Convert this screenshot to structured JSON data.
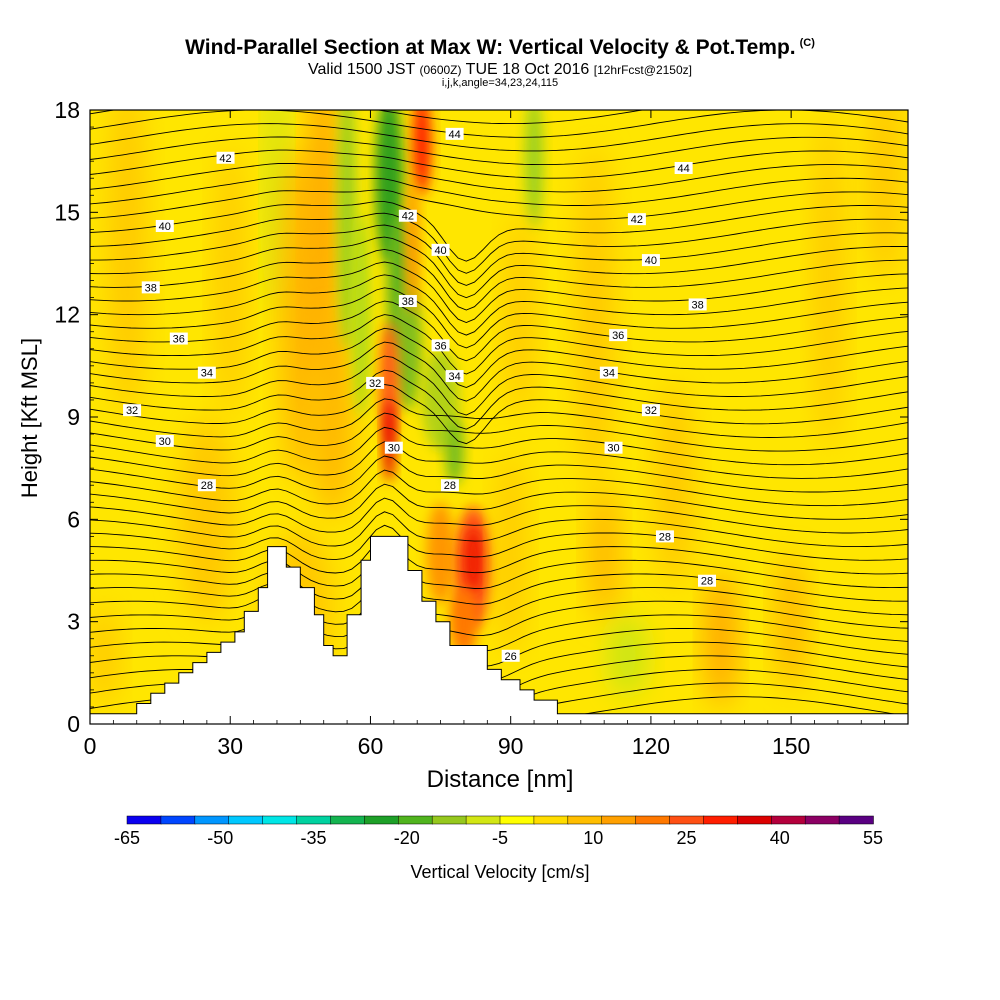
{
  "title": "Wind-Parallel Section at Max W: Vertical Velocity & Pot.Temp.",
  "title_suffix": "(C)",
  "subtitle_main": "Valid 1500 JST",
  "subtitle_utc": "(0600Z)",
  "subtitle_date": "TUE 18 Oct 2016",
  "subtitle_fcst": "[12hrFcst@2150z]",
  "subtitle_line3": "i,j,k,angle=34,23,24,115",
  "colorbar_label": "Vertical Velocity [cm/s]",
  "colorbar_ticks": [
    "-65",
    "-50",
    "-35",
    "-20",
    "-5",
    "10",
    "25",
    "40",
    "55"
  ],
  "colorbar_colors": [
    "#0a00f0",
    "#0046ff",
    "#0096ff",
    "#00c8ff",
    "#00e6e6",
    "#00d2a0",
    "#14b450",
    "#1ea028",
    "#50b41e",
    "#96c81e",
    "#d2e614",
    "#ffff00",
    "#ffdc00",
    "#ffbe00",
    "#ffa000",
    "#ff7800",
    "#ff5014",
    "#ff1e00",
    "#dc0000",
    "#b4003c",
    "#8c0064",
    "#5a0082"
  ],
  "chart_data": {
    "type": "heatmap",
    "xlabel": "Distance [nm]",
    "ylabel": "Height [Kft MSL]",
    "xlim": [
      0,
      175
    ],
    "ylim": [
      0,
      18
    ],
    "x_ticks": [
      "0",
      "30",
      "60",
      "90",
      "120",
      "150"
    ],
    "y_ticks": [
      "0",
      "3",
      "6",
      "9",
      "12",
      "15",
      "18"
    ],
    "terrain": [
      [
        0,
        0.3
      ],
      [
        10,
        0.3
      ],
      [
        10,
        0.6
      ],
      [
        13,
        0.6
      ],
      [
        13,
        0.9
      ],
      [
        16,
        0.9
      ],
      [
        16,
        1.2
      ],
      [
        19,
        1.2
      ],
      [
        19,
        1.5
      ],
      [
        22,
        1.5
      ],
      [
        22,
        1.8
      ],
      [
        25,
        1.8
      ],
      [
        25,
        2.1
      ],
      [
        28,
        2.1
      ],
      [
        28,
        2.4
      ],
      [
        31,
        2.4
      ],
      [
        31,
        2.7
      ],
      [
        33,
        2.7
      ],
      [
        33,
        3.3
      ],
      [
        36,
        3.3
      ],
      [
        36,
        4.0
      ],
      [
        38,
        4.0
      ],
      [
        38,
        5.2
      ],
      [
        42,
        5.2
      ],
      [
        42,
        4.6
      ],
      [
        45,
        4.6
      ],
      [
        45,
        4.0
      ],
      [
        48,
        4.0
      ],
      [
        48,
        3.2
      ],
      [
        50,
        3.2
      ],
      [
        50,
        2.3
      ],
      [
        52,
        2.3
      ],
      [
        52,
        2.0
      ],
      [
        55,
        2.0
      ],
      [
        55,
        3.2
      ],
      [
        58,
        3.2
      ],
      [
        58,
        4.8
      ],
      [
        60,
        4.8
      ],
      [
        60,
        5.5
      ],
      [
        68,
        5.5
      ],
      [
        68,
        4.5
      ],
      [
        71,
        4.5
      ],
      [
        71,
        3.6
      ],
      [
        74,
        3.6
      ],
      [
        74,
        3.0
      ],
      [
        77,
        3.0
      ],
      [
        77,
        2.3
      ],
      [
        85,
        2.3
      ],
      [
        85,
        1.6
      ],
      [
        88,
        1.6
      ],
      [
        88,
        1.3
      ],
      [
        92,
        1.3
      ],
      [
        92,
        1.0
      ],
      [
        95,
        1.0
      ],
      [
        95,
        0.7
      ],
      [
        100,
        0.7
      ],
      [
        100,
        0.3
      ],
      [
        175,
        0.3
      ]
    ],
    "theta_contours": [
      {
        "level": "26",
        "label_x": 90,
        "label_y": 2.0
      },
      {
        "level": "28",
        "label_x": 25,
        "label_y": 7.0
      },
      {
        "level": "28",
        "label_x": 77,
        "label_y": 7.0
      },
      {
        "level": "28",
        "label_x": 123,
        "label_y": 5.5
      },
      {
        "level": "28",
        "label_x": 132,
        "label_y": 4.2
      },
      {
        "level": "30",
        "label_x": 16,
        "label_y": 8.3
      },
      {
        "level": "30",
        "label_x": 65,
        "label_y": 8.1
      },
      {
        "level": "30",
        "label_x": 112,
        "label_y": 8.1
      },
      {
        "level": "32",
        "label_x": 9,
        "label_y": 9.2
      },
      {
        "level": "32",
        "label_x": 61,
        "label_y": 10.0
      },
      {
        "level": "32",
        "label_x": 120,
        "label_y": 9.2
      },
      {
        "level": "34",
        "label_x": 25,
        "label_y": 10.3
      },
      {
        "level": "34",
        "label_x": 78,
        "label_y": 10.2
      },
      {
        "level": "34",
        "label_x": 111,
        "label_y": 10.3
      },
      {
        "level": "36",
        "label_x": 19,
        "label_y": 11.3
      },
      {
        "level": "36",
        "label_x": 75,
        "label_y": 11.1
      },
      {
        "level": "36",
        "label_x": 113,
        "label_y": 11.4
      },
      {
        "level": "38",
        "label_x": 13,
        "label_y": 12.8
      },
      {
        "level": "38",
        "label_x": 68,
        "label_y": 12.4
      },
      {
        "level": "38",
        "label_x": 130,
        "label_y": 12.3
      },
      {
        "level": "40",
        "label_x": 16,
        "label_y": 14.6
      },
      {
        "level": "40",
        "label_x": 75,
        "label_y": 13.9
      },
      {
        "level": "40",
        "label_x": 120,
        "label_y": 13.6
      },
      {
        "level": "42",
        "label_x": 29,
        "label_y": 16.6
      },
      {
        "level": "42",
        "label_x": 68,
        "label_y": 14.9
      },
      {
        "level": "42",
        "label_x": 117,
        "label_y": 14.8
      },
      {
        "level": "44",
        "label_x": 78,
        "label_y": 17.3
      },
      {
        "level": "44",
        "label_x": 127,
        "label_y": 16.3
      }
    ],
    "velocity_features": [
      {
        "type": "updraft",
        "x": 64,
        "y": 8.5,
        "value": 35
      },
      {
        "type": "updraft",
        "x": 71,
        "y": 17,
        "value": 35
      },
      {
        "type": "updraft",
        "x": 82,
        "y": 4.6,
        "value": 30
      },
      {
        "type": "downdraft",
        "x": 64,
        "y": 16,
        "value": -20
      },
      {
        "type": "downdraft",
        "x": 68,
        "y": 12,
        "value": -15
      },
      {
        "type": "downdraft",
        "x": 95,
        "y": 16.5,
        "value": -10
      }
    ]
  }
}
